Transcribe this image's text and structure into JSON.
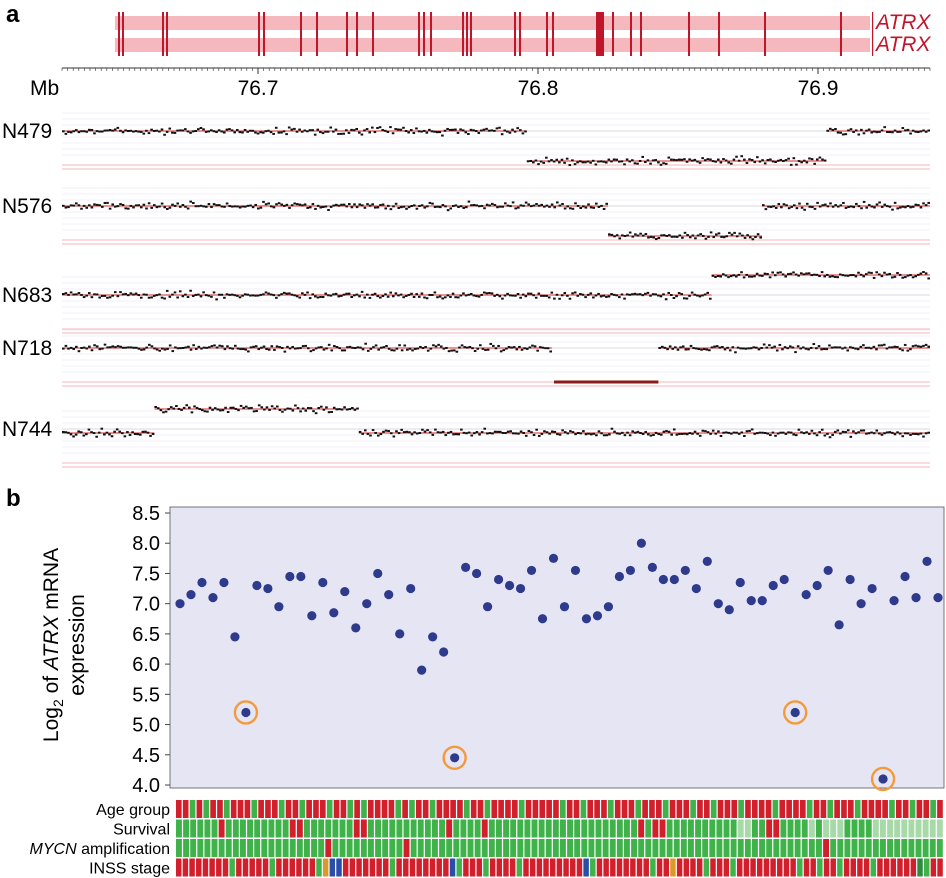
{
  "panel_a": {
    "label": "a",
    "gene_names": [
      "ATRX",
      "ATRX"
    ],
    "axis_unit": "Mb",
    "ticks": [
      {
        "value": 76.7,
        "label": "76.7"
      },
      {
        "value": 76.8,
        "label": "76.8"
      },
      {
        "value": 76.9,
        "label": "76.9"
      }
    ],
    "xlim": [
      76.63,
      76.94
    ],
    "colors": {
      "gene": "#c0162c",
      "gene_band": "#f5b8bd",
      "segment": "#d42a2a",
      "point": "#111111",
      "deletion": "#8b1a1a"
    }
  },
  "panel_b": {
    "label": "b",
    "y_label_parts": [
      "Log",
      "2",
      " of ",
      "ATRX",
      " mRNA",
      "expression"
    ],
    "y_ticks": [
      "8.5",
      "8.0",
      "7.5",
      "7.0",
      "6.5",
      "6.0",
      "5.5",
      "5.0",
      "4.5",
      "4.0"
    ],
    "annotation_rows": [
      "Age group",
      "Survival",
      "MYCN amplification",
      "INSS stage"
    ],
    "annotation_row_italic_prefix": "MYCN",
    "colors": {
      "plot_bg": "#e6e5f3",
      "point": "#2e3a8c",
      "circle": "#f39a3c",
      "red": "#d11f2b",
      "green": "#3fb34a",
      "light_green": "#a8d9a8",
      "dark_green": "#2e8a3c",
      "orange": "#d99a2a",
      "blue": "#2a4ea8"
    }
  },
  "chart_data": [
    {
      "type": "scatter",
      "title": "",
      "xlabel": "Mb",
      "ylabel": "",
      "xlim": [
        76.63,
        76.94
      ],
      "series": [
        {
          "name": "N479",
          "segments": [
            {
              "start": 76.63,
              "end": 76.796,
              "level": "normal"
            },
            {
              "start": 76.796,
              "end": 76.903,
              "level": "loss"
            },
            {
              "start": 76.903,
              "end": 76.94,
              "level": "normal"
            }
          ]
        },
        {
          "name": "N576",
          "segments": [
            {
              "start": 76.63,
              "end": 76.825,
              "level": "normal"
            },
            {
              "start": 76.825,
              "end": 76.88,
              "level": "loss"
            },
            {
              "start": 76.88,
              "end": 76.94,
              "level": "normal"
            }
          ]
        },
        {
          "name": "N683",
          "segments": [
            {
              "start": 76.63,
              "end": 76.862,
              "level": "normal"
            },
            {
              "start": 76.862,
              "end": 76.94,
              "level": "gain"
            }
          ]
        },
        {
          "name": "N718",
          "segments": [
            {
              "start": 76.63,
              "end": 76.805,
              "level": "normal"
            },
            {
              "start": 76.805,
              "end": 76.843,
              "level": "homozygous deletion"
            },
            {
              "start": 76.843,
              "end": 76.94,
              "level": "normal"
            }
          ]
        },
        {
          "name": "N744",
          "segments": [
            {
              "start": 76.63,
              "end": 76.663,
              "level": "normal"
            },
            {
              "start": 76.663,
              "end": 76.736,
              "level": "gain"
            },
            {
              "start": 76.736,
              "end": 76.94,
              "level": "normal"
            }
          ]
        }
      ]
    },
    {
      "type": "scatter",
      "title": "",
      "xlabel": "",
      "ylabel": "Log2 of ATRX mRNA expression",
      "ylim": [
        4.0,
        8.5
      ],
      "y_ticks": [
        8.5,
        8.0,
        7.5,
        7.0,
        6.5,
        6.0,
        5.5,
        5.0,
        4.5,
        4.0
      ],
      "values": [
        7.0,
        7.15,
        7.35,
        7.1,
        7.35,
        6.45,
        5.2,
        7.3,
        7.25,
        6.95,
        7.45,
        7.45,
        6.8,
        7.35,
        6.85,
        7.2,
        6.6,
        7.0,
        7.5,
        7.15,
        6.5,
        7.25,
        5.9,
        6.45,
        6.2,
        4.45,
        7.6,
        7.5,
        6.95,
        7.4,
        7.3,
        7.25,
        7.55,
        6.75,
        7.75,
        6.95,
        7.55,
        6.75,
        6.8,
        6.95,
        7.45,
        7.55,
        8.0,
        7.6,
        7.4,
        7.4,
        7.55,
        7.25,
        7.7,
        7.0,
        6.9,
        7.35,
        7.05,
        7.05,
        7.3,
        7.4,
        5.2,
        7.15,
        7.3,
        7.55,
        6.65,
        7.4,
        7.0,
        7.25,
        4.1,
        7.05,
        7.45,
        7.1,
        7.7,
        7.1
      ],
      "circled_indices": [
        6,
        25,
        56,
        64
      ],
      "annotation_rows": {
        "Age group": "rrgrgrrgrrrgrrrgrrgrrrgrrgrgrrrrgrgrrgrrrrgrrgrrrrgrrrrrgrrgrrrgrrrgrrrgrrrgrrgrrrgrrrrgrrrrgrrgrrrgrrrrgrrgrrgr",
        "Survival": "ggggggrgggggggggrrgggggggrrgggggggggggrggggrgggggggggggggggggggggrgrrggggggggggllggrrgggglglllggggllllllllll",
        "MYCN amplification": "gggggggggggggggggggggrggggggggggrggggggggggggggggggggggggggggggggggggggggggggggggggggggggggrgggggggggggggggg",
        "INSS stage": "rrrrrrrrgrrrrrgrrrrrrgobbrrrrrrrgrrrrrrrrbgrrrgrrrrgrrrrrrrrrbgrrrrrrrrgrrorrrrgrrrgrrrrrrrrrgrrgrrgrrrrgrrrrrrdgrr"
      }
    }
  ]
}
